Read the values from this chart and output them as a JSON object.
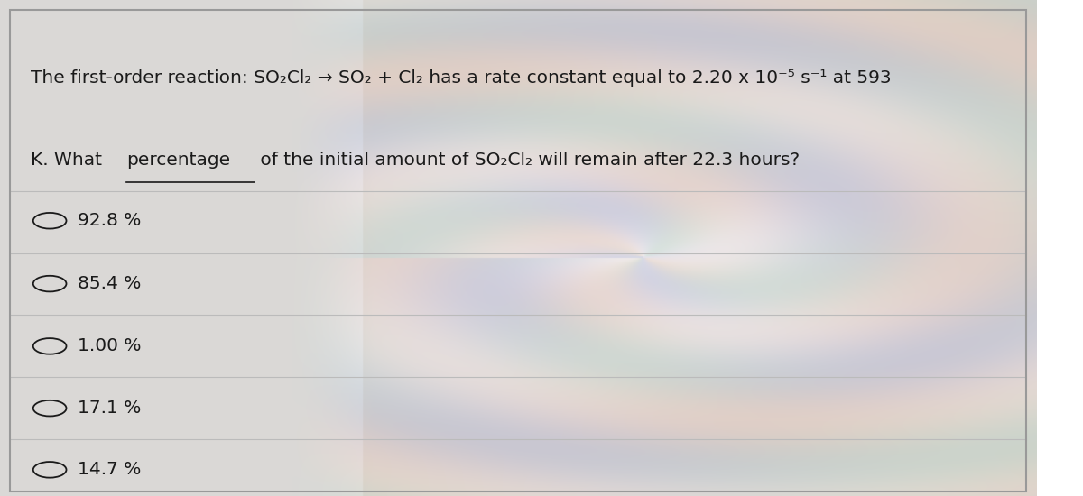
{
  "question_line1": "The first-order reaction: SO₂Cl₂ → SO₂ + Cl₂ has a rate constant equal to 2.20 x 10⁻⁵ s⁻¹ at 593",
  "question_line2_pre": "K. What ",
  "question_underline": "percentage",
  "question_line2_post": " of the initial amount of SO₂Cl₂ will remain after 22.3 hours?",
  "options": [
    "92.8 %",
    "85.4 %",
    "1.00 %",
    "17.1 %",
    "14.7 %"
  ],
  "border_color": "#999999",
  "text_color": "#1a1a1a",
  "font_size_question": 14.5,
  "font_size_options": 14.5,
  "divider_color": "#bbbbbb"
}
